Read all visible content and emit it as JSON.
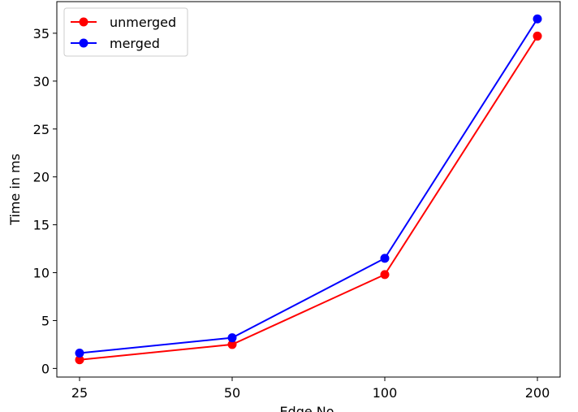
{
  "chart_data": {
    "type": "line",
    "title": "",
    "xlabel": "Edge No",
    "ylabel": "Time in ms",
    "categories": [
      "25",
      "50",
      "100",
      "200"
    ],
    "ylim": [
      -0.9,
      38.3
    ],
    "yticks": [
      0,
      5,
      10,
      15,
      20,
      25,
      30,
      35
    ],
    "grid": false,
    "legend_position": "top-left",
    "series": [
      {
        "name": "unmerged",
        "color": "#ff0000",
        "marker": "circle",
        "values": [
          0.9,
          2.5,
          9.8,
          34.7
        ]
      },
      {
        "name": "merged",
        "color": "#0000ff",
        "marker": "circle",
        "values": [
          1.6,
          3.2,
          11.5,
          36.5
        ]
      }
    ]
  }
}
